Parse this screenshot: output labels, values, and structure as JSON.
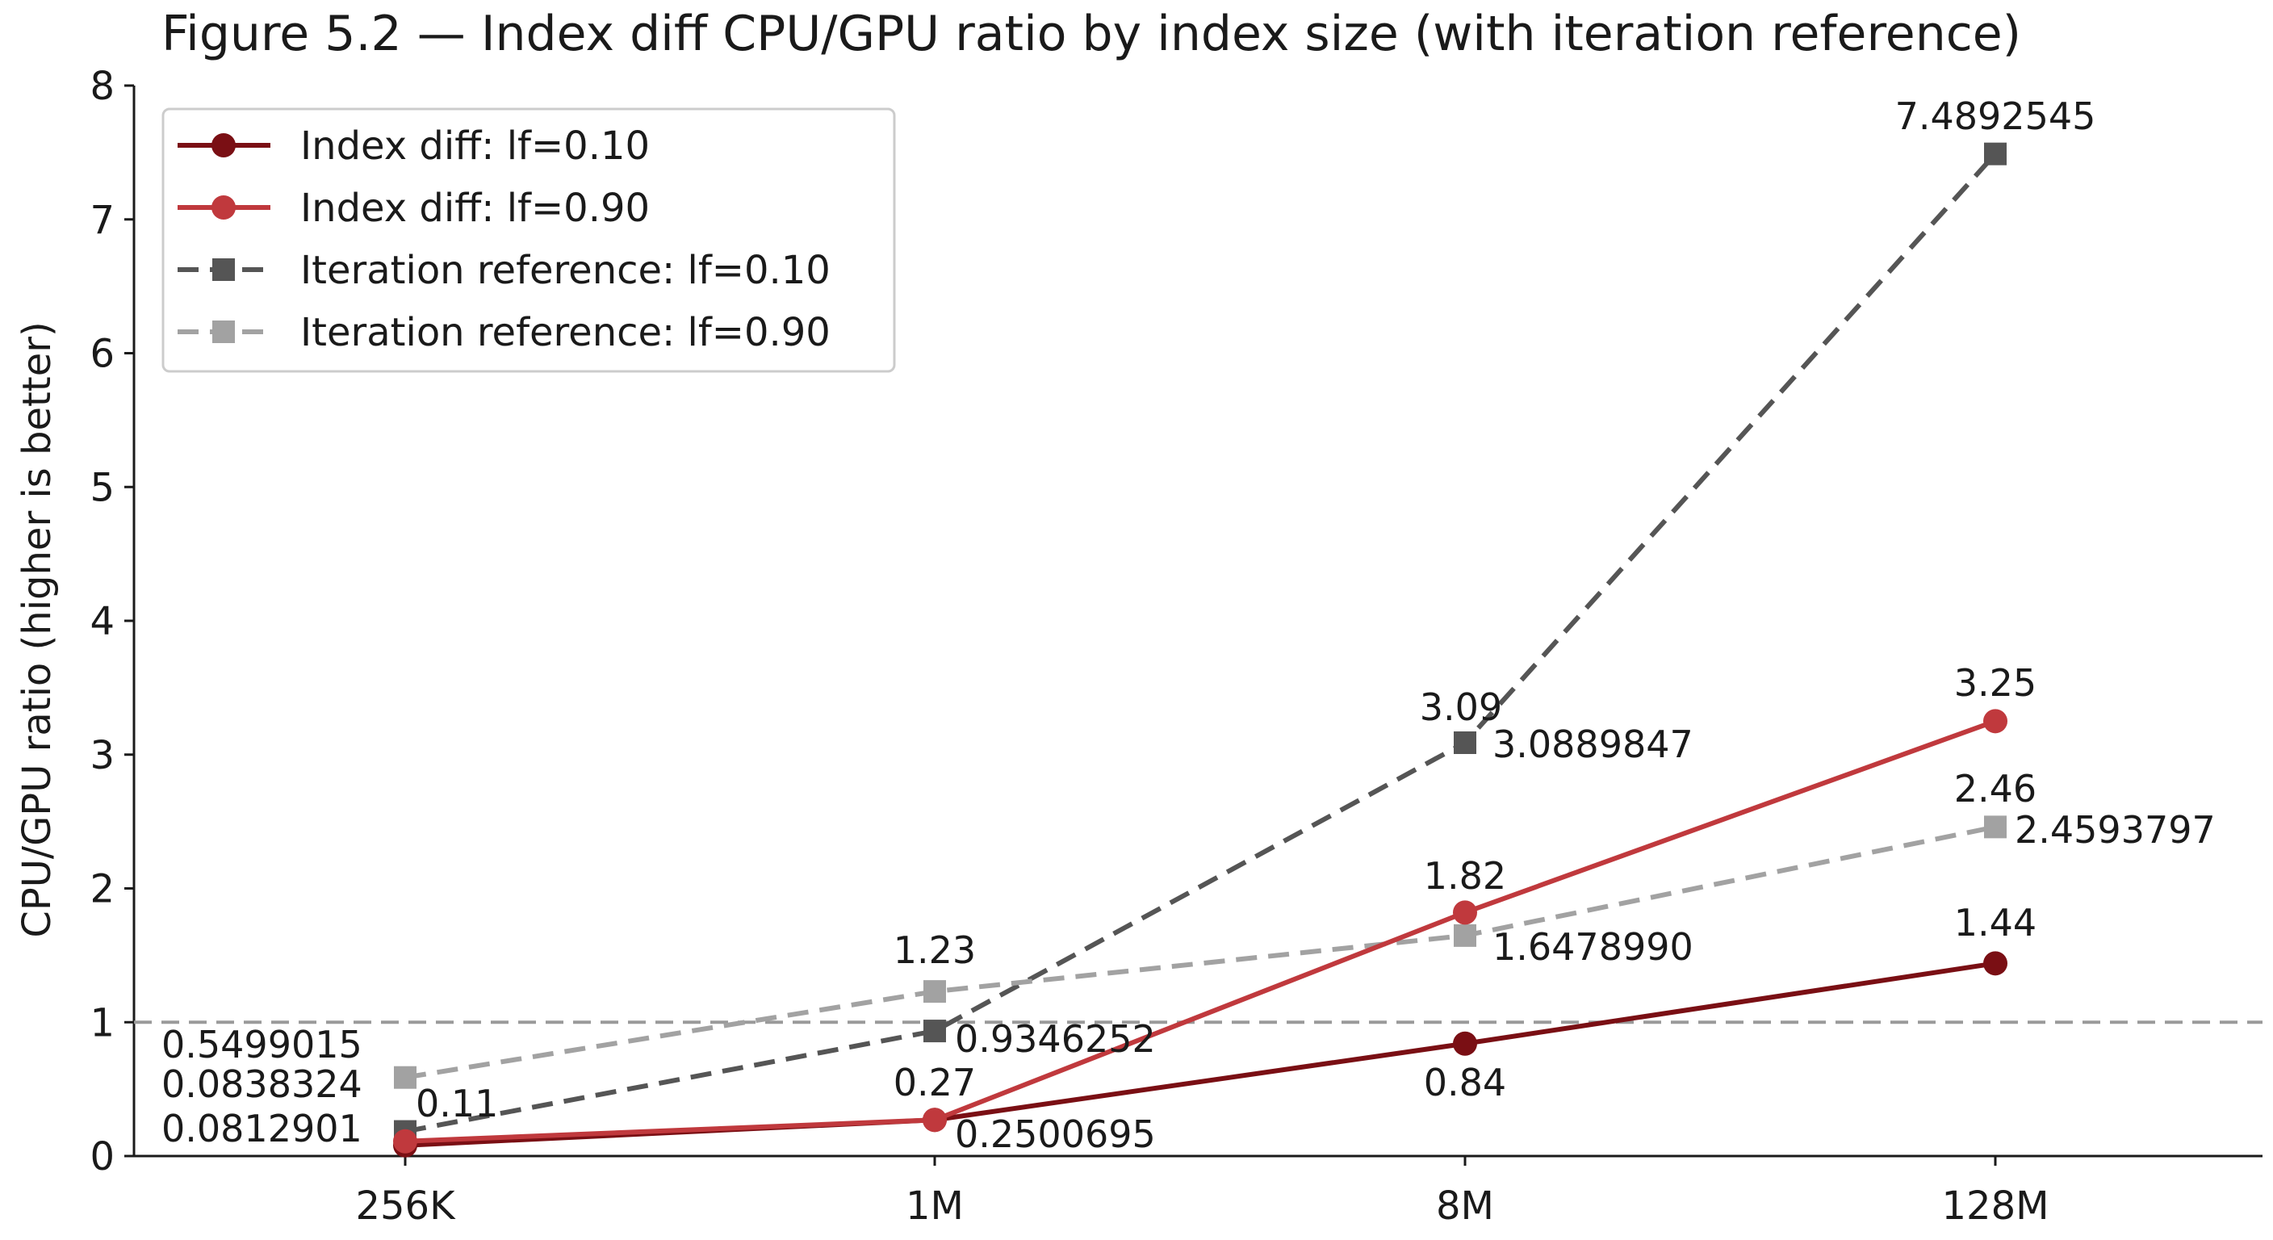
{
  "colors": {
    "dark_red": "#7a0f14",
    "red": "#c0393d",
    "dark_gray": "#555555",
    "light_gray": "#a2a2a2",
    "reference_line": "#9a9a9a",
    "axis": "#1a1a1a"
  },
  "chart_data": {
    "type": "line",
    "title": "Figure 5.2 — Index diff CPU/GPU ratio by index size (with iteration reference)",
    "xlabel": "",
    "ylabel": "CPU/GPU ratio (higher is better)",
    "categories": [
      "256K",
      "1M",
      "8M",
      "128M"
    ],
    "ylim": [
      0,
      8
    ],
    "yticks": [
      "0",
      "1",
      "2",
      "3",
      "4",
      "5",
      "6",
      "7",
      "8"
    ],
    "reference_line": 1,
    "grid": false,
    "legend_position": "top-left",
    "series": [
      {
        "name": "Index diff: lf=0.10",
        "values": [
          0.08,
          0.27,
          0.84,
          1.44
        ],
        "labels": [
          "",
          "0.27",
          "0.84",
          "1.44"
        ],
        "style": "solid",
        "marker": "circle",
        "color": "#7a0f14"
      },
      {
        "name": "Index diff: lf=0.90",
        "values": [
          0.11,
          0.27,
          1.82,
          3.25
        ],
        "labels": [
          "0.11",
          "",
          "1.82",
          "3.25"
        ],
        "style": "solid",
        "marker": "circle",
        "color": "#c0393d"
      },
      {
        "name": "Iteration reference: lf=0.10",
        "values": [
          0.1837,
          0.9346252,
          3.0889847,
          7.4892545
        ],
        "labels": [
          "",
          "0.9346252",
          "3.0889847",
          "7.4892545"
        ],
        "style": "dashed",
        "marker": "square",
        "color": "#555555"
      },
      {
        "name": "Iteration reference: lf=0.90",
        "values": [
          0.5871,
          1.23,
          1.647899,
          2.4593797
        ],
        "labels": [
          "",
          "1.23",
          "1.6478990",
          "2.4593797"
        ],
        "style": "dashed",
        "marker": "square",
        "color": "#a2a2a2"
      }
    ],
    "annotations": [
      "0.5499015",
      "0.0838324",
      "0.0812901",
      "0.2500695",
      "3.09",
      "2.46"
    ]
  }
}
